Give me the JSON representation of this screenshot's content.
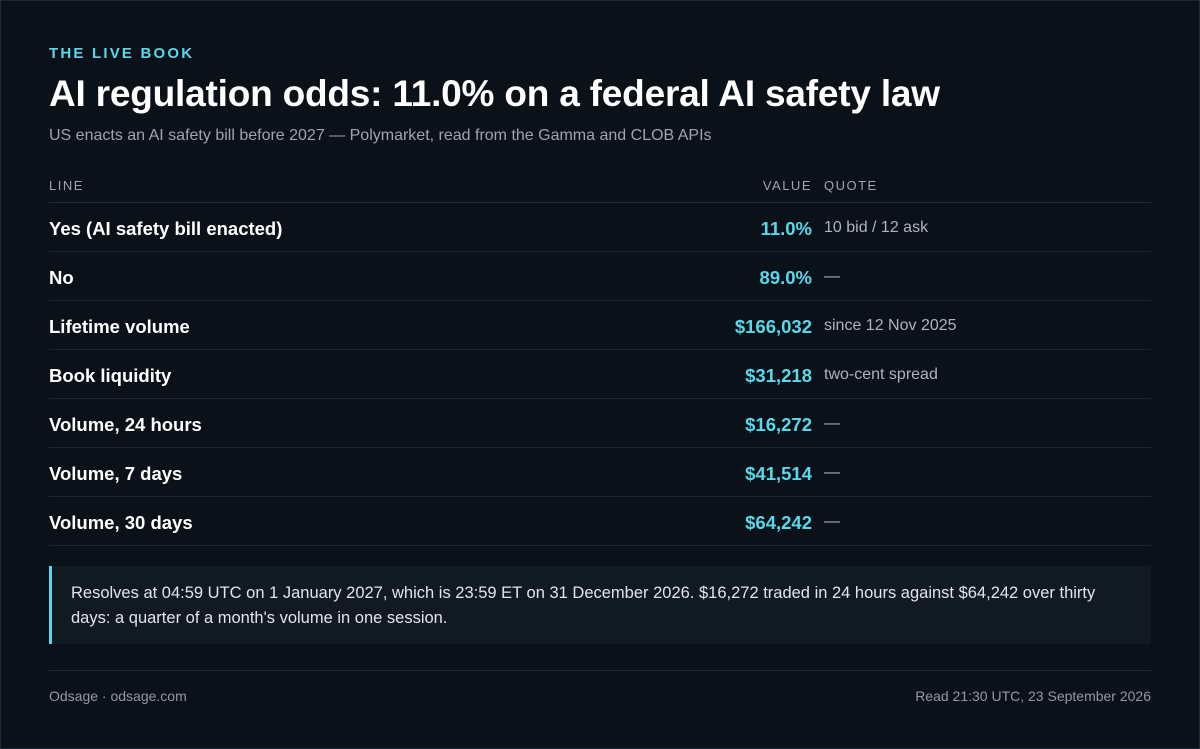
{
  "header": {
    "kicker": "THE LIVE BOOK",
    "title": "AI regulation odds: 11.0% on a federal AI safety law",
    "subtitle": "US enacts an AI safety bill before 2027 — Polymarket, read from the Gamma and CLOB APIs"
  },
  "table": {
    "columns": {
      "line": "LINE",
      "value": "VALUE",
      "quote": "QUOTE"
    },
    "rows": [
      {
        "label": "Yes (AI safety bill enacted)",
        "value": "11.0%",
        "quote": "10 bid / 12 ask"
      },
      {
        "label": "No",
        "value": "89.0%",
        "quote": "—"
      },
      {
        "label": "Lifetime volume",
        "value": "$166,032",
        "quote": "since 12 Nov 2025"
      },
      {
        "label": "Book liquidity",
        "value": "$31,218",
        "quote": "two-cent spread"
      },
      {
        "label": "Volume, 24 hours",
        "value": "$16,272",
        "quote": "—"
      },
      {
        "label": "Volume, 7 days",
        "value": "$41,514",
        "quote": "—"
      },
      {
        "label": "Volume, 30 days",
        "value": "$64,242",
        "quote": "—"
      }
    ]
  },
  "note": {
    "text": "Resolves at 04:59 UTC on 1 January 2027, which is 23:59 ET on 31 December 2026. $16,272 traded in 24 hours against $64,242 over thirty days: a quarter of a month's volume in one session."
  },
  "footer": {
    "left": "Odsage · odsage.com",
    "right": "Read 21:30 UTC, 23 September 2026"
  },
  "colors": {
    "background": "#0b1119",
    "accent": "#5ad8ea",
    "muted": "#9aa6b3",
    "note_background": "#111a23"
  }
}
